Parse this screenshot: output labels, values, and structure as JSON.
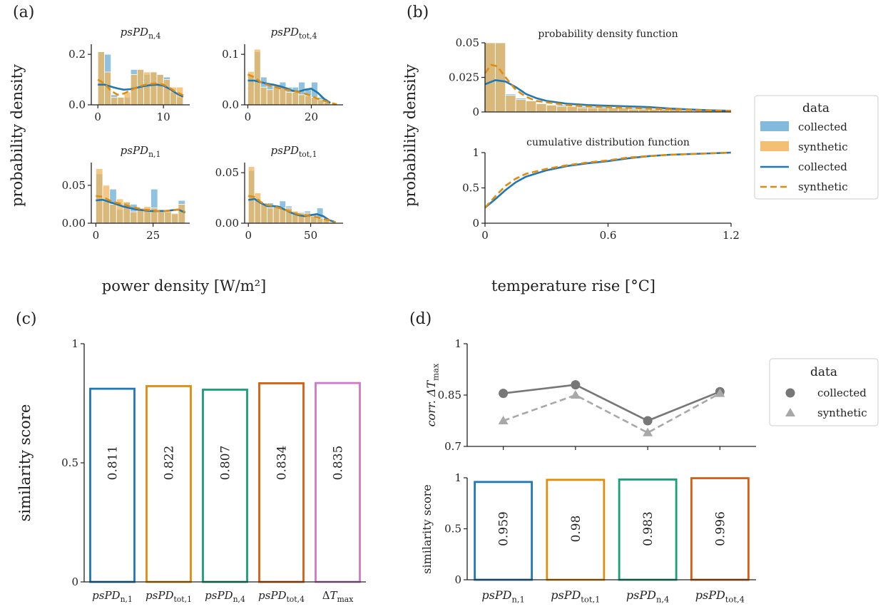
{
  "colors": {
    "collected": "#1f77b4",
    "collected_bar": "#6baed6",
    "synthetic": "#e08c0e",
    "synthetic_bar": "#f2b45b",
    "gray_dark": "#777777",
    "gray_light": "#a8a8a8",
    "axis": "#222222"
  },
  "panels": {
    "a": {
      "label": "(a)",
      "xlabel": "power density [W/m²]",
      "ylabel": "probability density"
    },
    "b": {
      "label": "(b)",
      "xlabel": "temperature rise [°C]",
      "ylabel": "probability density"
    },
    "c": {
      "label": "(c)",
      "ylabel": "similarity score"
    },
    "d": {
      "label": "(d)",
      "ylabel_top": "corr. ΔT_max",
      "ylabel_bottom": "similarity score"
    }
  },
  "legend_b": {
    "title": "data",
    "entries": [
      {
        "label": "collected",
        "kind": "bar",
        "color_key": "collected_bar"
      },
      {
        "label": "synthetic",
        "kind": "bar",
        "color_key": "synthetic_bar"
      },
      {
        "label": "collected",
        "kind": "line",
        "color_key": "collected"
      },
      {
        "label": "synthetic",
        "kind": "dashed",
        "color_key": "synthetic"
      }
    ]
  },
  "legend_d": {
    "title": "data",
    "entries": [
      {
        "label": "collected",
        "kind": "circle",
        "color_key": "gray_dark"
      },
      {
        "label": "synthetic",
        "kind": "triangle",
        "color_key": "gray_light"
      }
    ]
  },
  "chart_data": [
    {
      "id": "a1",
      "type": "bar",
      "title": "psPD_n,4",
      "xlim": [
        -1,
        14
      ],
      "ylim": [
        0,
        0.24
      ],
      "xticks": [
        0,
        10
      ],
      "yticks": [
        0,
        0.2
      ],
      "ytick_labels": [
        "0.0",
        "0.2"
      ],
      "bin_edges": [
        0,
        1,
        2,
        3,
        4,
        5,
        6,
        7,
        8,
        9,
        10,
        11,
        12,
        13
      ],
      "series": [
        {
          "name": "collected",
          "kind": "hist",
          "values": [
            0.21,
            0.2,
            0.04,
            0.03,
            0.03,
            0.14,
            0.14,
            0.12,
            0.13,
            0.12,
            0.11,
            0.05,
            0.03
          ]
        },
        {
          "name": "synthetic",
          "kind": "hist",
          "values": [
            0.21,
            0.13,
            0.03,
            0.03,
            0.05,
            0.12,
            0.14,
            0.13,
            0.13,
            0.12,
            0.1,
            0.07,
            0.07
          ]
        },
        {
          "name": "collected",
          "kind": "kde",
          "x": [
            0,
            1,
            2,
            3,
            4,
            5,
            6,
            7,
            8,
            9,
            10,
            11,
            12,
            13
          ],
          "y": [
            0.08,
            0.08,
            0.072,
            0.065,
            0.06,
            0.062,
            0.068,
            0.074,
            0.078,
            0.08,
            0.076,
            0.062,
            0.045,
            0.032
          ]
        },
        {
          "name": "synthetic",
          "kind": "kde",
          "x": [
            0,
            1,
            2,
            3,
            4,
            5,
            6,
            7,
            8,
            9,
            10,
            11,
            12,
            13
          ],
          "y": [
            0.1,
            0.085,
            0.055,
            0.04,
            0.045,
            0.058,
            0.07,
            0.078,
            0.083,
            0.085,
            0.08,
            0.066,
            0.05,
            0.038
          ]
        }
      ]
    },
    {
      "id": "a2",
      "type": "bar",
      "title": "psPD_tot,4",
      "xlim": [
        -1,
        30
      ],
      "ylim": [
        0,
        0.12
      ],
      "xticks": [
        0,
        20
      ],
      "yticks": [
        0,
        0.1
      ],
      "ytick_labels": [
        "0.0",
        "0.1"
      ],
      "bin_edges": [
        0,
        2,
        4,
        6,
        8,
        10,
        12,
        14,
        16,
        18,
        20,
        22,
        24,
        26
      ],
      "series": [
        {
          "name": "collected",
          "kind": "hist",
          "values": [
            0.058,
            0.105,
            0.055,
            0.04,
            0.035,
            0.045,
            0.035,
            0.035,
            0.045,
            0.03,
            0.045,
            0.015,
            0.005
          ]
        },
        {
          "name": "synthetic",
          "kind": "hist",
          "values": [
            0.066,
            0.11,
            0.035,
            0.03,
            0.04,
            0.035,
            0.025,
            0.025,
            0.02,
            0.018,
            0.015,
            0.01,
            0.005
          ]
        },
        {
          "name": "collected",
          "kind": "kde",
          "x": [
            0,
            2,
            4,
            6,
            8,
            10,
            12,
            14,
            16,
            18,
            20,
            22,
            24,
            26
          ],
          "y": [
            0.048,
            0.048,
            0.045,
            0.042,
            0.04,
            0.037,
            0.033,
            0.028,
            0.026,
            0.03,
            0.032,
            0.024,
            0.012,
            0.004
          ]
        },
        {
          "name": "synthetic",
          "kind": "kde",
          "x": [
            0,
            2,
            4,
            6,
            8,
            10,
            12,
            14,
            16,
            18,
            20,
            22,
            24,
            26,
            28
          ],
          "y": [
            0.06,
            0.055,
            0.045,
            0.04,
            0.036,
            0.033,
            0.03,
            0.028,
            0.025,
            0.022,
            0.018,
            0.012,
            0.008,
            0.004,
            0.001
          ]
        }
      ]
    },
    {
      "id": "a3",
      "type": "bar",
      "title": "psPD_n,1",
      "xlim": [
        -2,
        41
      ],
      "ylim": [
        0,
        0.08
      ],
      "xticks": [
        0,
        25
      ],
      "yticks": [
        0,
        0.05
      ],
      "ytick_labels": [
        "0.00",
        "0.05"
      ],
      "bin_edges": [
        0,
        3,
        6,
        9,
        12,
        15,
        18,
        21,
        24,
        27,
        30,
        33,
        36,
        39
      ],
      "series": [
        {
          "name": "collected",
          "kind": "hist",
          "values": [
            0.065,
            0.028,
            0.045,
            0.018,
            0.028,
            0.025,
            0.016,
            0.018,
            0.045,
            0.018,
            0.016,
            0.012,
            0.03
          ]
        },
        {
          "name": "synthetic",
          "kind": "hist",
          "values": [
            0.072,
            0.05,
            0.025,
            0.032,
            0.028,
            0.015,
            0.02,
            0.022,
            0.02,
            0.015,
            0.015,
            0.013,
            0.025
          ]
        },
        {
          "name": "collected",
          "kind": "kde",
          "x": [
            0,
            3,
            6,
            9,
            12,
            15,
            18,
            21,
            24,
            27,
            30,
            33,
            36,
            39
          ],
          "y": [
            0.03,
            0.031,
            0.028,
            0.025,
            0.022,
            0.02,
            0.018,
            0.017,
            0.016,
            0.016,
            0.016,
            0.017,
            0.018,
            0.014
          ]
        },
        {
          "name": "synthetic",
          "kind": "kde",
          "x": [
            0,
            3,
            6,
            9,
            12,
            15,
            18,
            21,
            24,
            27,
            30,
            33,
            36,
            39
          ],
          "y": [
            0.036,
            0.035,
            0.03,
            0.027,
            0.025,
            0.022,
            0.02,
            0.018,
            0.017,
            0.016,
            0.016,
            0.017,
            0.018,
            0.015
          ]
        }
      ]
    },
    {
      "id": "a4",
      "type": "bar",
      "title": "psPD_tot,1",
      "xlim": [
        -3,
        76
      ],
      "ylim": [
        0,
        0.06
      ],
      "xticks": [
        0,
        50
      ],
      "yticks": [
        0,
        0.05
      ],
      "ytick_labels": [
        "0.00",
        "0.05"
      ],
      "bin_edges": [
        0,
        5,
        10,
        15,
        20,
        25,
        30,
        35,
        40,
        45,
        50,
        55,
        60,
        65,
        70
      ],
      "series": [
        {
          "name": "collected",
          "kind": "hist",
          "values": [
            0.052,
            0.024,
            0.02,
            0.02,
            0.018,
            0.022,
            0.017,
            0.011,
            0.011,
            0.012,
            0.009,
            0.015,
            0.003,
            0.001
          ]
        },
        {
          "name": "synthetic",
          "kind": "hist",
          "values": [
            0.056,
            0.03,
            0.02,
            0.015,
            0.017,
            0.015,
            0.015,
            0.012,
            0.01,
            0.01,
            0.007,
            0.005,
            0.003,
            0.001
          ]
        },
        {
          "name": "collected",
          "kind": "kde",
          "x": [
            0,
            5,
            10,
            15,
            20,
            25,
            30,
            35,
            40,
            45,
            50,
            55,
            60,
            65,
            70
          ],
          "y": [
            0.023,
            0.024,
            0.02,
            0.017,
            0.017,
            0.016,
            0.013,
            0.01,
            0.008,
            0.007,
            0.008,
            0.009,
            0.007,
            0.003,
            0.001
          ]
        },
        {
          "name": "synthetic",
          "kind": "kde",
          "x": [
            0,
            5,
            10,
            15,
            20,
            25,
            30,
            35,
            40,
            45,
            50,
            55,
            60,
            65,
            70
          ],
          "y": [
            0.027,
            0.026,
            0.021,
            0.018,
            0.017,
            0.015,
            0.013,
            0.011,
            0.009,
            0.008,
            0.007,
            0.006,
            0.004,
            0.003,
            0.001
          ]
        }
      ]
    },
    {
      "id": "b1",
      "type": "bar",
      "title": "probability density function",
      "xlim": [
        0,
        1.2
      ],
      "ylim": [
        0,
        0.05
      ],
      "yticks": [
        0,
        0.025,
        0.05
      ],
      "ytick_labels": [
        "0",
        "0.025",
        "0.05"
      ],
      "bin_edges": [
        0,
        0.05,
        0.1,
        0.15,
        0.2,
        0.25,
        0.3,
        0.35,
        0.4,
        0.45,
        0.5,
        0.55,
        0.6,
        0.65,
        0.7,
        0.75,
        0.8,
        0.85,
        0.9,
        0.95,
        1.0,
        1.05,
        1.1,
        1.15,
        1.2
      ],
      "series": [
        {
          "name": "collected",
          "kind": "hist",
          "values": [
            0.05,
            0.05,
            0.013,
            0.01,
            0.008,
            0.006,
            0.005,
            0.005,
            0.004,
            0.004,
            0.004,
            0.004,
            0.003,
            0.003,
            0.003,
            0.003,
            0.002,
            0.002,
            0.002,
            0.002,
            0.001,
            0.001,
            0.001,
            0.001
          ]
        },
        {
          "name": "synthetic",
          "kind": "hist",
          "values": [
            0.05,
            0.05,
            0.012,
            0.009,
            0.008,
            0.006,
            0.005,
            0.004,
            0.004,
            0.003,
            0.003,
            0.003,
            0.003,
            0.003,
            0.002,
            0.002,
            0.002,
            0.002,
            0.002,
            0.001,
            0.001,
            0.001,
            0.001,
            0.001
          ]
        },
        {
          "name": "collected",
          "kind": "kde",
          "x": [
            0,
            0.05,
            0.1,
            0.15,
            0.2,
            0.25,
            0.3,
            0.4,
            0.5,
            0.6,
            0.7,
            0.8,
            0.9,
            1.0,
            1.1,
            1.2
          ],
          "y": [
            0.02,
            0.023,
            0.022,
            0.018,
            0.013,
            0.01,
            0.008,
            0.006,
            0.005,
            0.0045,
            0.004,
            0.0035,
            0.0025,
            0.0018,
            0.0012,
            0.0008
          ]
        },
        {
          "name": "synthetic",
          "kind": "kde",
          "x": [
            0,
            0.03,
            0.06,
            0.1,
            0.15,
            0.2,
            0.25,
            0.3,
            0.4,
            0.5,
            0.6,
            0.7,
            0.8,
            0.9,
            1.0,
            1.1,
            1.2
          ],
          "y": [
            0.028,
            0.034,
            0.033,
            0.025,
            0.016,
            0.011,
            0.008,
            0.007,
            0.005,
            0.004,
            0.0035,
            0.003,
            0.0025,
            0.002,
            0.0015,
            0.001,
            0.0008
          ]
        }
      ]
    },
    {
      "id": "b2",
      "type": "line",
      "title": "cumulative distribution function",
      "xlim": [
        0,
        1.2
      ],
      "ylim": [
        0,
        1
      ],
      "xticks": [
        0,
        0.6,
        1.2
      ],
      "yticks": [
        0,
        0.5,
        1
      ],
      "ytick_labels": [
        "0",
        "0.5",
        "1"
      ],
      "series": [
        {
          "name": "collected",
          "x": [
            0,
            0.05,
            0.1,
            0.15,
            0.2,
            0.3,
            0.4,
            0.5,
            0.6,
            0.7,
            0.8,
            0.9,
            1.0,
            1.1,
            1.2
          ],
          "y": [
            0.22,
            0.34,
            0.47,
            0.58,
            0.66,
            0.75,
            0.81,
            0.85,
            0.88,
            0.92,
            0.95,
            0.97,
            0.98,
            0.99,
            1.0
          ]
        },
        {
          "name": "synthetic",
          "x": [
            0,
            0.05,
            0.1,
            0.15,
            0.2,
            0.3,
            0.4,
            0.5,
            0.6,
            0.7,
            0.8,
            0.9,
            1.0,
            1.1,
            1.2
          ],
          "y": [
            0.22,
            0.38,
            0.53,
            0.63,
            0.7,
            0.77,
            0.82,
            0.86,
            0.89,
            0.93,
            0.95,
            0.97,
            0.98,
            0.99,
            1.0
          ]
        }
      ]
    },
    {
      "id": "c",
      "type": "bar",
      "categories": [
        "psPD_n,1",
        "psPD_tot,1",
        "psPD_n,4",
        "psPD_tot,4",
        "ΔT_max"
      ],
      "values": [
        0.811,
        0.822,
        0.807,
        0.834,
        0.835
      ],
      "bar_labels": [
        "0.811",
        "0.822",
        "0.807",
        "0.834",
        "0.835"
      ],
      "bar_colors": [
        "#1f77b4",
        "#e08c0e",
        "#1a9e78",
        "#d45f10",
        "#cc79c9"
      ],
      "ylabel": "similarity score",
      "ylim": [
        0,
        1
      ],
      "yticks": [
        0,
        0.5,
        1
      ],
      "ytick_labels": [
        "0",
        "0.5",
        "1"
      ]
    },
    {
      "id": "d1",
      "type": "line",
      "categories": [
        "psPD_n,1",
        "psPD_tot,1",
        "psPD_n,4",
        "psPD_tot,4"
      ],
      "series": [
        {
          "name": "collected",
          "values": [
            0.855,
            0.88,
            0.775,
            0.86
          ]
        },
        {
          "name": "synthetic",
          "values": [
            0.775,
            0.85,
            0.74,
            0.855
          ]
        }
      ],
      "ylabel": "corr. ΔT_max",
      "ylim": [
        0.7,
        1
      ],
      "yticks": [
        0.7,
        0.85,
        1
      ],
      "ytick_labels": [
        "0.7",
        "0.85",
        "1"
      ]
    },
    {
      "id": "d2",
      "type": "bar",
      "categories": [
        "psPD_n,1",
        "psPD_tot,1",
        "psPD_n,4",
        "psPD_tot,4"
      ],
      "values": [
        0.959,
        0.98,
        0.983,
        0.996
      ],
      "bar_labels": [
        "0.959",
        "0.98",
        "0.983",
        "0.996"
      ],
      "bar_colors": [
        "#1f77b4",
        "#e08c0e",
        "#1a9e78",
        "#d45f10"
      ],
      "ylabel": "similarity score",
      "ylim": [
        0,
        1
      ],
      "yticks": [
        0,
        0.5,
        1
      ],
      "ytick_labels": [
        "0",
        "0.5",
        "1"
      ]
    }
  ]
}
